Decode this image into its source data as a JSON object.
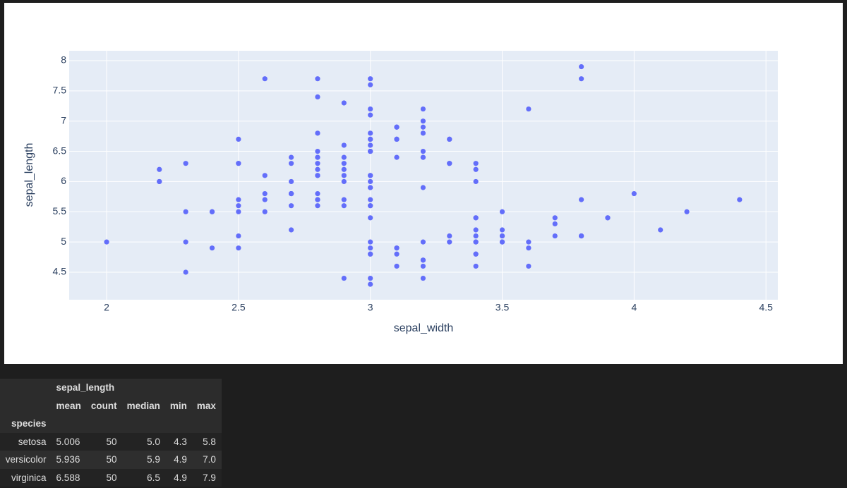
{
  "chart_data": {
    "type": "scatter",
    "x_label": "sepal_width",
    "y_label": "sepal_length",
    "color": "#636efa",
    "grid": true,
    "xlim": [
      1.858,
      4.545
    ],
    "xticks": [
      2,
      2.5,
      3,
      3.5,
      4,
      4.5
    ],
    "ylim": [
      4.045,
      8.163
    ],
    "yticks": [
      4.5,
      5,
      5.5,
      6,
      6.5,
      7,
      7.5,
      8
    ],
    "x": [
      3.5,
      3.0,
      3.2,
      3.1,
      3.6,
      3.9,
      3.4,
      3.4,
      2.9,
      3.1,
      3.7,
      3.4,
      3.0,
      3.0,
      4.0,
      4.4,
      3.9,
      3.5,
      3.8,
      3.8,
      3.4,
      3.7,
      3.6,
      3.3,
      3.4,
      3.0,
      3.4,
      3.5,
      3.4,
      3.2,
      3.1,
      3.4,
      4.1,
      4.2,
      3.1,
      3.2,
      3.5,
      3.6,
      3.0,
      3.4,
      3.5,
      2.3,
      3.2,
      3.5,
      3.8,
      3.0,
      3.8,
      3.2,
      3.7,
      3.3,
      3.2,
      3.2,
      3.1,
      2.3,
      2.8,
      2.8,
      3.3,
      2.4,
      2.9,
      2.7,
      2.0,
      3.0,
      2.2,
      2.9,
      2.9,
      3.1,
      3.0,
      2.7,
      2.2,
      2.5,
      3.2,
      2.8,
      2.5,
      2.8,
      2.9,
      3.0,
      2.8,
      3.0,
      2.9,
      2.6,
      2.4,
      2.4,
      2.7,
      2.7,
      3.0,
      3.4,
      3.1,
      2.3,
      3.0,
      2.5,
      2.6,
      3.0,
      2.6,
      2.3,
      2.7,
      3.0,
      2.9,
      2.9,
      2.5,
      2.8,
      3.3,
      2.7,
      3.0,
      2.9,
      3.0,
      3.0,
      2.5,
      2.9,
      2.5,
      3.6,
      3.2,
      2.7,
      3.0,
      2.5,
      2.8,
      3.2,
      3.0,
      3.8,
      2.6,
      2.2,
      3.2,
      2.8,
      2.8,
      2.7,
      3.3,
      3.2,
      2.8,
      3.0,
      2.8,
      3.0,
      2.8,
      3.8,
      2.8,
      2.8,
      2.6,
      3.0,
      3.4,
      3.1,
      3.0,
      3.1,
      3.1,
      3.1,
      2.7,
      3.2,
      3.3,
      3.0,
      2.5,
      3.0,
      3.4,
      3.0
    ],
    "values": [
      5.1,
      4.9,
      4.7,
      4.6,
      5.0,
      5.4,
      4.6,
      5.0,
      4.4,
      4.9,
      5.4,
      4.8,
      4.8,
      4.3,
      5.8,
      5.7,
      5.4,
      5.1,
      5.7,
      5.1,
      5.4,
      5.1,
      4.6,
      5.1,
      4.8,
      5.0,
      5.0,
      5.2,
      5.2,
      4.7,
      4.8,
      5.4,
      5.2,
      5.5,
      4.9,
      5.0,
      5.5,
      4.9,
      4.4,
      5.1,
      5.0,
      4.5,
      4.4,
      5.0,
      5.1,
      4.8,
      5.1,
      4.6,
      5.3,
      5.0,
      7.0,
      6.4,
      6.9,
      5.5,
      6.5,
      5.7,
      6.3,
      4.9,
      6.6,
      5.2,
      5.0,
      5.9,
      6.0,
      6.1,
      5.6,
      6.7,
      5.6,
      5.8,
      6.2,
      5.6,
      5.9,
      6.1,
      6.3,
      6.1,
      6.4,
      6.6,
      6.8,
      6.7,
      6.0,
      5.7,
      5.5,
      5.5,
      5.8,
      6.0,
      5.4,
      6.0,
      6.7,
      6.3,
      5.6,
      5.5,
      5.5,
      6.1,
      5.8,
      5.0,
      5.6,
      5.7,
      5.7,
      6.2,
      5.1,
      5.7,
      6.3,
      5.8,
      7.1,
      6.3,
      6.5,
      7.6,
      4.9,
      7.3,
      6.7,
      7.2,
      6.5,
      6.4,
      6.8,
      5.7,
      5.8,
      6.4,
      6.5,
      7.7,
      7.7,
      6.0,
      6.9,
      5.6,
      7.7,
      6.3,
      6.7,
      7.2,
      6.2,
      6.1,
      6.4,
      7.2,
      7.4,
      7.9,
      6.4,
      6.3,
      6.1,
      7.7,
      6.3,
      6.4,
      6.0,
      6.9,
      6.7,
      6.9,
      5.8,
      6.8,
      6.7,
      6.7,
      6.3,
      6.5,
      6.2,
      5.9
    ]
  },
  "table": {
    "column_group": "sepal_length",
    "columns": [
      "mean",
      "count",
      "median",
      "min",
      "max"
    ],
    "index_name": "species",
    "rows": [
      [
        "setosa",
        "5.006",
        "50",
        "5.0",
        "4.3",
        "5.8"
      ],
      [
        "versicolor",
        "5.936",
        "50",
        "5.9",
        "4.9",
        "7.0"
      ],
      [
        "virginica",
        "6.588",
        "50",
        "6.5",
        "4.9",
        "7.9"
      ]
    ]
  }
}
